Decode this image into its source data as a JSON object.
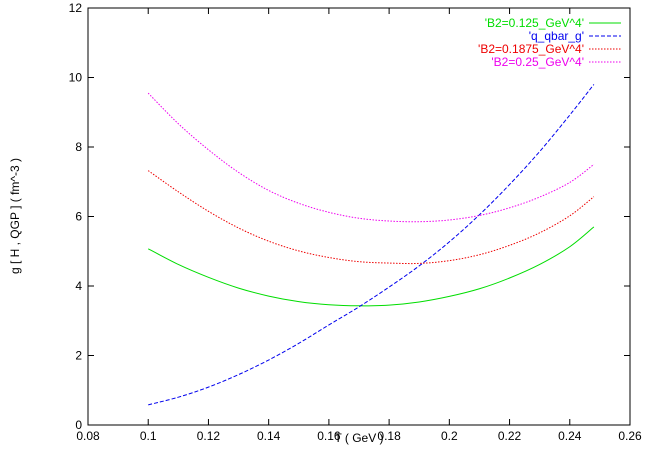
{
  "chart_data": {
    "type": "line",
    "title": "",
    "xlabel": "T ( GeV )",
    "ylabel": "g [ H , QGP ] ( fm^-3 )",
    "xlim": [
      0.08,
      0.26
    ],
    "ylim": [
      0,
      12
    ],
    "xticks": [
      0.08,
      0.1,
      0.12,
      0.14,
      0.16,
      0.18,
      0.2,
      0.22,
      0.24,
      0.26
    ],
    "yticks": [
      0,
      2,
      4,
      6,
      8,
      10,
      12
    ],
    "xtick_labels": [
      "0.08",
      "0.1",
      "0.12",
      "0.14",
      "0.16",
      "0.18",
      "0.2",
      "0.22",
      "0.24",
      "0.26"
    ],
    "ytick_labels": [
      "0",
      "2",
      "4",
      "6",
      "8",
      "10",
      "12"
    ],
    "grid": false,
    "legend_position": "top-right",
    "series": [
      {
        "name": "'B2=0.125_GeV^4'",
        "color": "#00dd00",
        "dash": "solid",
        "x": [
          0.1,
          0.11,
          0.12,
          0.13,
          0.14,
          0.15,
          0.16,
          0.17,
          0.18,
          0.19,
          0.2,
          0.21,
          0.22,
          0.23,
          0.24,
          0.248
        ],
        "y": [
          5.07,
          4.62,
          4.25,
          3.94,
          3.71,
          3.55,
          3.46,
          3.43,
          3.45,
          3.54,
          3.7,
          3.92,
          4.23,
          4.62,
          5.13,
          5.7
        ]
      },
      {
        "name": "'q_qbar_g'",
        "color": "#0000ee",
        "dash": "dashed",
        "x": [
          0.1,
          0.11,
          0.12,
          0.13,
          0.14,
          0.15,
          0.16,
          0.17,
          0.18,
          0.19,
          0.2,
          0.21,
          0.22,
          0.23,
          0.24,
          0.248
        ],
        "y": [
          0.58,
          0.8,
          1.09,
          1.45,
          1.87,
          2.35,
          2.88,
          3.4,
          3.97,
          4.58,
          5.27,
          6.05,
          6.92,
          7.87,
          8.92,
          9.8
        ]
      },
      {
        "name": "'B2=0.1875_GeV^4'",
        "color": "#ee0000",
        "dash": "dotted",
        "x": [
          0.1,
          0.11,
          0.12,
          0.13,
          0.14,
          0.15,
          0.16,
          0.17,
          0.18,
          0.19,
          0.2,
          0.21,
          0.22,
          0.23,
          0.24,
          0.248
        ],
        "y": [
          7.32,
          6.71,
          6.15,
          5.67,
          5.29,
          5.01,
          4.82,
          4.7,
          4.66,
          4.65,
          4.73,
          4.9,
          5.17,
          5.53,
          6.02,
          6.57
        ]
      },
      {
        "name": "'B2=0.25_GeV^4'",
        "color": "#ee00ee",
        "dash": "dotted",
        "x": [
          0.1,
          0.11,
          0.12,
          0.13,
          0.14,
          0.15,
          0.16,
          0.17,
          0.18,
          0.19,
          0.2,
          0.21,
          0.22,
          0.23,
          0.24,
          0.248
        ],
        "y": [
          9.55,
          8.67,
          7.92,
          7.27,
          6.75,
          6.38,
          6.12,
          5.95,
          5.87,
          5.85,
          5.9,
          6.03,
          6.25,
          6.56,
          6.98,
          7.5
        ]
      }
    ]
  }
}
